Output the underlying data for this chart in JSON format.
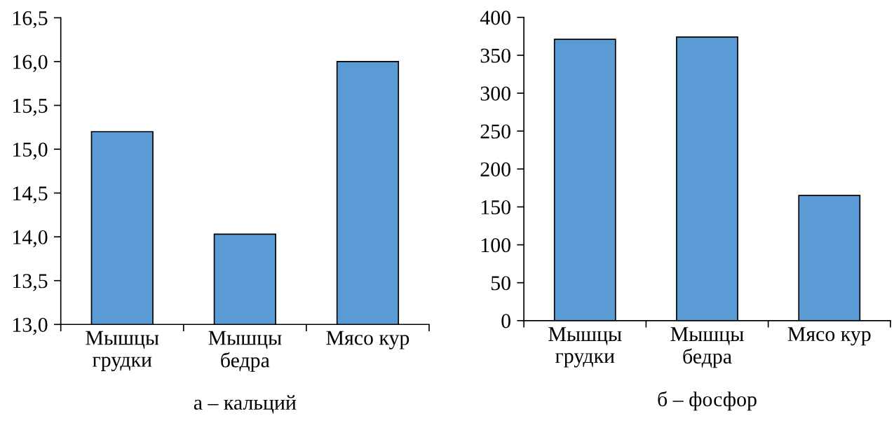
{
  "chart_data": [
    {
      "type": "bar",
      "xlabel": "а – кальций",
      "categories": [
        "Мышцы\nгрудки",
        "Мышцы\nбедра",
        "Мясо кур"
      ],
      "values": [
        15.2,
        14.03,
        16.0
      ],
      "color": "#5b9bd5",
      "ylim": [
        13.0,
        16.5
      ],
      "yticks": [
        {
          "value": 13.0,
          "label": "13,0"
        },
        {
          "value": 13.5,
          "label": "13,5"
        },
        {
          "value": 14.0,
          "label": "14,0"
        },
        {
          "value": 14.5,
          "label": "14,5"
        },
        {
          "value": 15.0,
          "label": "15,0"
        },
        {
          "value": 15.5,
          "label": "15,5"
        },
        {
          "value": 16.0,
          "label": "16,0"
        },
        {
          "value": 16.5,
          "label": "16,5"
        }
      ]
    },
    {
      "type": "bar",
      "xlabel": "б – фосфор",
      "categories": [
        "Мышцы\nгрудки",
        "Мышцы\nбедра",
        "Мясо кур"
      ],
      "values": [
        371,
        374,
        165
      ],
      "color": "#5b9bd5",
      "ylim": [
        0,
        400
      ],
      "yticks": [
        0,
        50,
        100,
        150,
        200,
        250,
        300,
        350,
        400
      ]
    }
  ]
}
